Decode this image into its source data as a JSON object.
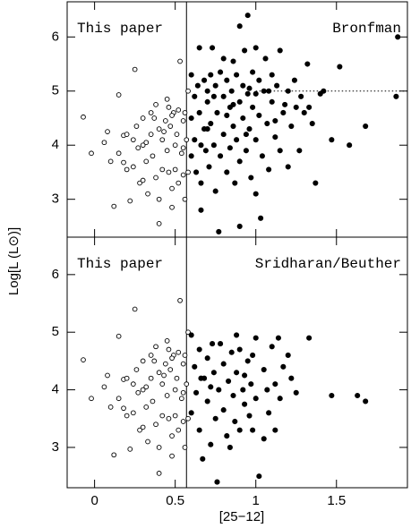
{
  "chart_data": [
    {
      "type": "scatter",
      "y_label": "Log[L (L⊙)]",
      "xlim": [
        -0.17,
        1.94
      ],
      "ylim": [
        2.3,
        6.65
      ],
      "xticks": [
        0,
        0.5,
        1,
        1.5
      ],
      "yticks": [
        3,
        4,
        5,
        6
      ],
      "vline": 0.57,
      "hline": {
        "y": 5,
        "x_start": 1.0
      },
      "series": [
        {
          "name": "This paper",
          "marker": "open",
          "color": "#000",
          "x": [
            -0.07,
            -0.02,
            0.06,
            0.08,
            0.1,
            0.12,
            0.15,
            0.15,
            0.18,
            0.18,
            0.2,
            0.2,
            0.22,
            0.24,
            0.25,
            0.26,
            0.27,
            0.28,
            0.3,
            0.3,
            0.32,
            0.32,
            0.33,
            0.35,
            0.35,
            0.36,
            0.38,
            0.38,
            0.4,
            0.4,
            0.4,
            0.42,
            0.42,
            0.44,
            0.45,
            0.45,
            0.46,
            0.47,
            0.48,
            0.48,
            0.49,
            0.5,
            0.5,
            0.51,
            0.52,
            0.52,
            0.53,
            0.54,
            0.55,
            0.55,
            0.55,
            0.56,
            0.57,
            0.58,
            0.58,
            0.56,
            0.48,
            0.43,
            0.37,
            0.3,
            0.24,
            0.46
          ],
          "values": [
            4.52,
            3.85,
            4.05,
            4.25,
            3.7,
            2.87,
            4.93,
            3.85,
            4.18,
            3.68,
            4.2,
            3.55,
            2.97,
            4.1,
            5.4,
            4.35,
            3.95,
            3.3,
            3.35,
            4.5,
            4.05,
            3.7,
            3.1,
            4.6,
            4.2,
            3.8,
            4.75,
            3.4,
            4.3,
            3.0,
            2.55,
            4.1,
            3.55,
            4.45,
            4.85,
            3.9,
            3.5,
            4.35,
            3.2,
            2.85,
            4.6,
            4.0,
            3.55,
            4.2,
            4.65,
            3.3,
            5.55,
            3.85,
            4.45,
            3.45,
            3.95,
            4.6,
            4.1,
            3.5,
            5.0,
            3.0,
            4.55,
            4.25,
            4.5,
            4.0,
            3.6,
            4.7
          ]
        },
        {
          "name": "Bronfman",
          "marker": "filled",
          "color": "#000",
          "x": [
            0.6,
            0.6,
            0.6,
            0.62,
            0.62,
            0.63,
            0.64,
            0.65,
            0.65,
            0.66,
            0.66,
            0.68,
            0.68,
            0.69,
            0.7,
            0.7,
            0.71,
            0.72,
            0.72,
            0.73,
            0.74,
            0.75,
            0.75,
            0.76,
            0.77,
            0.78,
            0.78,
            0.8,
            0.8,
            0.8,
            0.82,
            0.82,
            0.84,
            0.84,
            0.85,
            0.86,
            0.86,
            0.87,
            0.88,
            0.88,
            0.9,
            0.9,
            0.9,
            0.9,
            0.92,
            0.92,
            0.93,
            0.94,
            0.95,
            0.95,
            0.96,
            0.97,
            0.98,
            0.98,
            1.0,
            1.0,
            1.0,
            1.02,
            1.02,
            1.03,
            1.04,
            1.05,
            1.06,
            1.07,
            1.08,
            1.1,
            1.1,
            1.12,
            1.13,
            1.15,
            1.15,
            1.17,
            1.2,
            1.2,
            1.22,
            1.24,
            1.25,
            1.27,
            1.3,
            1.32,
            1.33,
            1.35,
            1.37,
            1.4,
            1.42,
            1.47,
            1.52,
            1.58,
            1.68,
            1.87,
            1.88,
            0.96,
            1.08,
            1.18,
            0.74,
            0.86,
            1.28,
            0.66,
            0.7,
            1.0,
            1.12,
            0.82,
            0.94
          ],
          "values": [
            5.3,
            4.5,
            3.8,
            4.9,
            4.1,
            3.5,
            5.1,
            5.8,
            4.6,
            3.3,
            2.8,
            5.2,
            4.3,
            3.9,
            4.8,
            5.0,
            3.6,
            5.3,
            4.4,
            5.8,
            4.0,
            3.15,
            5.1,
            4.6,
            2.4,
            5.35,
            3.8,
            4.9,
            4.2,
            5.6,
            3.5,
            5.2,
            4.7,
            3.95,
            5.0,
            5.55,
            4.35,
            3.3,
            5.3,
            4.1,
            6.2,
            4.8,
            3.7,
            2.5,
            5.1,
            4.5,
            5.75,
            3.9,
            6.4,
            4.95,
            4.3,
            3.4,
            5.35,
            4.7,
            5.8,
            4.1,
            3.1,
            5.2,
            4.55,
            2.65,
            3.8,
            5.0,
            5.6,
            4.4,
            3.55,
            5.3,
            4.8,
            4.15,
            5.1,
            3.9,
            5.75,
            4.6,
            5.0,
            3.6,
            4.35,
            5.2,
            4.7,
            3.9,
            4.6,
            5.5,
            4.7,
            4.4,
            3.3,
            4.95,
            5.0,
            4.1,
            5.45,
            4.0,
            4.35,
            4.9,
            6.0,
            5.05,
            5.0,
            4.75,
            4.9,
            4.75,
            4.9,
            4.0,
            4.3,
            4.95,
            4.45,
            4.55,
            4.2
          ]
        }
      ]
    },
    {
      "type": "scatter",
      "x_label": "[25−12]",
      "y_label": "Log[L (L⊙)]",
      "xlim": [
        -0.17,
        1.94
      ],
      "ylim": [
        2.3,
        6.65
      ],
      "xticks": [
        0,
        0.5,
        1,
        1.5
      ],
      "yticks": [
        3,
        4,
        5,
        6
      ],
      "vline": 0.57,
      "series": [
        {
          "name": "This paper",
          "marker": "open",
          "color": "#000",
          "x": [
            -0.07,
            -0.02,
            0.06,
            0.08,
            0.1,
            0.12,
            0.15,
            0.15,
            0.18,
            0.18,
            0.2,
            0.2,
            0.22,
            0.24,
            0.25,
            0.26,
            0.27,
            0.28,
            0.3,
            0.3,
            0.32,
            0.32,
            0.33,
            0.35,
            0.35,
            0.36,
            0.38,
            0.38,
            0.4,
            0.4,
            0.4,
            0.42,
            0.42,
            0.44,
            0.45,
            0.45,
            0.46,
            0.47,
            0.48,
            0.48,
            0.49,
            0.5,
            0.5,
            0.51,
            0.52,
            0.52,
            0.53,
            0.54,
            0.55,
            0.55,
            0.55,
            0.56,
            0.57,
            0.58,
            0.58,
            0.56,
            0.48,
            0.43,
            0.37,
            0.3,
            0.24,
            0.46
          ],
          "values": [
            4.52,
            3.85,
            4.05,
            4.25,
            3.7,
            2.87,
            4.93,
            3.85,
            4.18,
            3.68,
            4.2,
            3.55,
            2.97,
            4.1,
            5.4,
            4.35,
            3.95,
            3.3,
            3.35,
            4.5,
            4.05,
            3.7,
            3.1,
            4.6,
            4.2,
            3.8,
            4.75,
            3.4,
            4.3,
            3.0,
            2.55,
            4.1,
            3.55,
            4.45,
            4.85,
            3.9,
            3.5,
            4.35,
            3.2,
            2.85,
            4.6,
            4.0,
            3.55,
            4.2,
            4.65,
            3.3,
            5.55,
            3.85,
            4.45,
            3.45,
            3.95,
            4.6,
            4.1,
            3.5,
            5.0,
            3.0,
            4.55,
            4.25,
            4.5,
            4.0,
            3.6,
            4.7
          ]
        },
        {
          "name": "Sridharan/Beuther",
          "marker": "filled",
          "color": "#000",
          "x": [
            0.6,
            0.6,
            0.62,
            0.63,
            0.65,
            0.65,
            0.67,
            0.68,
            0.7,
            0.7,
            0.72,
            0.73,
            0.74,
            0.75,
            0.76,
            0.77,
            0.78,
            0.8,
            0.8,
            0.82,
            0.83,
            0.85,
            0.86,
            0.87,
            0.88,
            0.9,
            0.9,
            0.92,
            0.93,
            0.95,
            0.96,
            0.97,
            0.98,
            1.0,
            1.0,
            1.02,
            1.05,
            1.07,
            1.08,
            1.1,
            1.12,
            1.14,
            1.15,
            1.17,
            1.2,
            1.22,
            1.25,
            1.33,
            1.47,
            1.63,
            1.68,
            0.88,
            0.84,
            0.93,
            1.05,
            0.72,
            0.66,
            0.98,
            1.12
          ],
          "values": [
            4.95,
            3.6,
            4.4,
            3.95,
            4.7,
            3.3,
            2.8,
            4.2,
            4.55,
            3.8,
            3.05,
            4.8,
            4.3,
            3.5,
            2.4,
            4.0,
            4.8,
            4.45,
            3.65,
            3.2,
            4.15,
            4.65,
            3.9,
            3.45,
            4.3,
            4.7,
            3.3,
            4.0,
            3.75,
            4.5,
            3.55,
            4.1,
            3.3,
            4.9,
            3.85,
            2.5,
            4.35,
            4.0,
            3.6,
            4.75,
            4.1,
            4.9,
            3.85,
            4.4,
            4.6,
            4.2,
            3.95,
            4.9,
            3.9,
            3.9,
            3.8,
            4.95,
            3.0,
            4.25,
            3.15,
            4.05,
            4.2,
            4.6,
            3.3
          ]
        }
      ]
    }
  ]
}
